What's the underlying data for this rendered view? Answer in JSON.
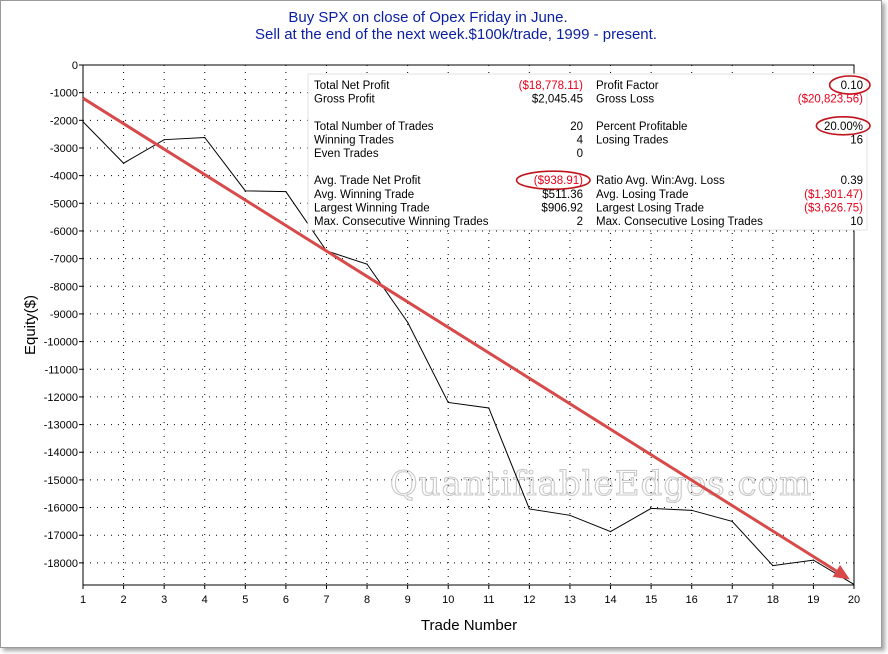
{
  "chart_data": {
    "type": "line",
    "title": [
      "Buy SPX on close of Opex Friday in June.",
      "Sell at the end of the next week.$100k/trade, 1999 - present."
    ],
    "xlabel": "Trade Number",
    "ylabel": "Equity($)",
    "xlim": [
      1,
      20
    ],
    "ylim": [
      -18800,
      0
    ],
    "x_ticks": [
      "1",
      "2",
      "3",
      "4",
      "5",
      "6",
      "7",
      "8",
      "9",
      "10",
      "11",
      "12",
      "13",
      "14",
      "15",
      "16",
      "17",
      "18",
      "19",
      "20"
    ],
    "y_ticks": [
      "0",
      "-1000",
      "-2000",
      "-3000",
      "-4000",
      "-5000",
      "-6000",
      "-7000",
      "-8000",
      "-9000",
      "-10000",
      "-11000",
      "-12000",
      "-13000",
      "-14000",
      "-15000",
      "-16000",
      "-17000",
      "-18000"
    ],
    "grid": true,
    "series": [
      {
        "x": [
          1,
          2,
          3,
          4,
          5,
          6,
          7,
          8,
          9,
          10,
          11,
          12,
          13,
          14,
          15,
          16,
          17,
          18,
          19,
          20
        ],
        "values": [
          -2050,
          -3550,
          -2700,
          -2620,
          -4550,
          -4580,
          -6720,
          -7200,
          -9300,
          -12200,
          -12400,
          -16050,
          -16280,
          -16870,
          -16030,
          -16100,
          -16500,
          -18100,
          -17900,
          -18779
        ]
      }
    ],
    "trend_arrow": {
      "x": [
        1,
        19.9
      ],
      "values": [
        -1200,
        -18600
      ],
      "color": "#d84a4a"
    },
    "stats_left": [
      {
        "label": "Total Net Profit",
        "value": "($18,778.11)",
        "negative": true,
        "circled": false
      },
      {
        "label": "Profit Factor",
        "value": "0.10",
        "negative": false,
        "circled": true
      },
      {
        "label": "Gross Profit",
        "value": "$2,045.45",
        "negative": false,
        "circled": false
      },
      {
        "label": "Gross Loss",
        "value": "($20,823.56)",
        "negative": true,
        "circled": false
      }
    ],
    "stats": [
      [
        "Total Net Profit",
        "($18,778.11)",
        "Profit Factor",
        "0.10"
      ],
      [
        "Gross Profit",
        "$2,045.45",
        "Gross Loss",
        "($20,823.56)"
      ],
      [
        "",
        "",
        "",
        ""
      ],
      [
        "Total Number of Trades",
        "20",
        "Percent Profitable",
        "20.00%"
      ],
      [
        "Winning Trades",
        "4",
        "Losing Trades",
        "16"
      ],
      [
        "Even Trades",
        "0",
        "",
        ""
      ],
      [
        "",
        "",
        "",
        ""
      ],
      [
        "Avg. Trade Net Profit",
        "($938.91)",
        "Ratio Avg. Win:Avg. Loss",
        "0.39"
      ],
      [
        "Avg. Winning Trade",
        "$511.36",
        "Avg. Losing Trade",
        "($1,301.47)"
      ],
      [
        "Largest Winning Trade",
        "$906.92",
        "Largest Losing Trade",
        "($3,626.75)"
      ],
      [
        "Max. Consecutive Winning Trades",
        "2",
        "Max. Consecutive Losing Trades",
        "10"
      ]
    ],
    "watermark": "QuantifiableEdges.com"
  }
}
